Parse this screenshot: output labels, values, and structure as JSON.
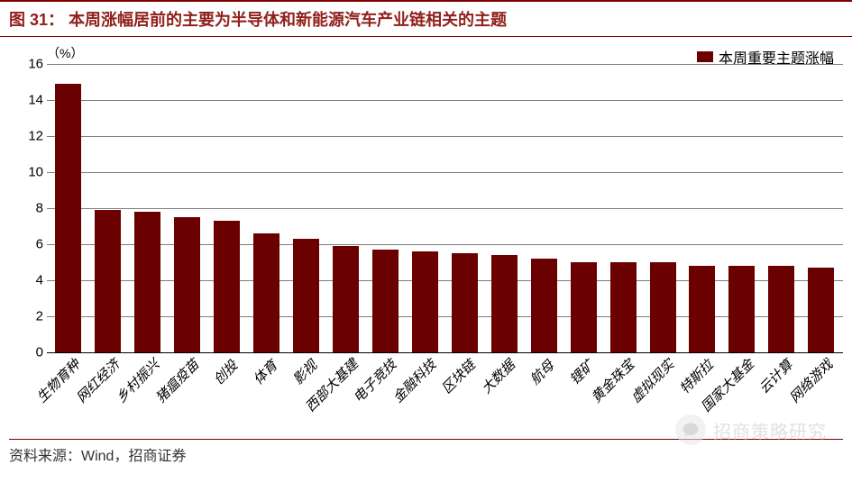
{
  "header": {
    "label": "图 31：",
    "title": "本周涨幅居前的主要为半导体和新能源汽车产业链相关的主题"
  },
  "chart": {
    "type": "bar",
    "y_unit": "（%）",
    "legend_label": "本周重要主题涨幅",
    "bar_color": "#6a0000",
    "grid_color": "#7f7f7f",
    "background_color": "#ffffff",
    "ylim": [
      0,
      16
    ],
    "ytick_step": 2,
    "yticks": [
      0,
      2,
      4,
      6,
      8,
      10,
      12,
      14,
      16
    ],
    "categories": [
      "生物育种",
      "网红经济",
      "乡村振兴",
      "猪瘟疫苗",
      "创投",
      "体育",
      "影视",
      "西部大基建",
      "电子竞技",
      "金融科技",
      "区块链",
      "大数据",
      "航母",
      "锂矿",
      "黄金珠宝",
      "虚拟现实",
      "特斯拉",
      "国家大基金",
      "云计算",
      "网络游戏"
    ],
    "values": [
      14.9,
      7.9,
      7.8,
      7.5,
      7.3,
      6.6,
      6.3,
      5.9,
      5.7,
      5.6,
      5.5,
      5.4,
      5.2,
      5.0,
      5.0,
      5.0,
      4.8,
      4.8,
      4.8,
      4.7
    ],
    "bar_width_pct": 3.3,
    "title_fontsize": 18,
    "label_fontsize": 15
  },
  "footer": {
    "source": "资料来源：Wind，招商证券"
  },
  "watermark": {
    "text": "招商策略研究",
    "icon": "chat-icon"
  }
}
